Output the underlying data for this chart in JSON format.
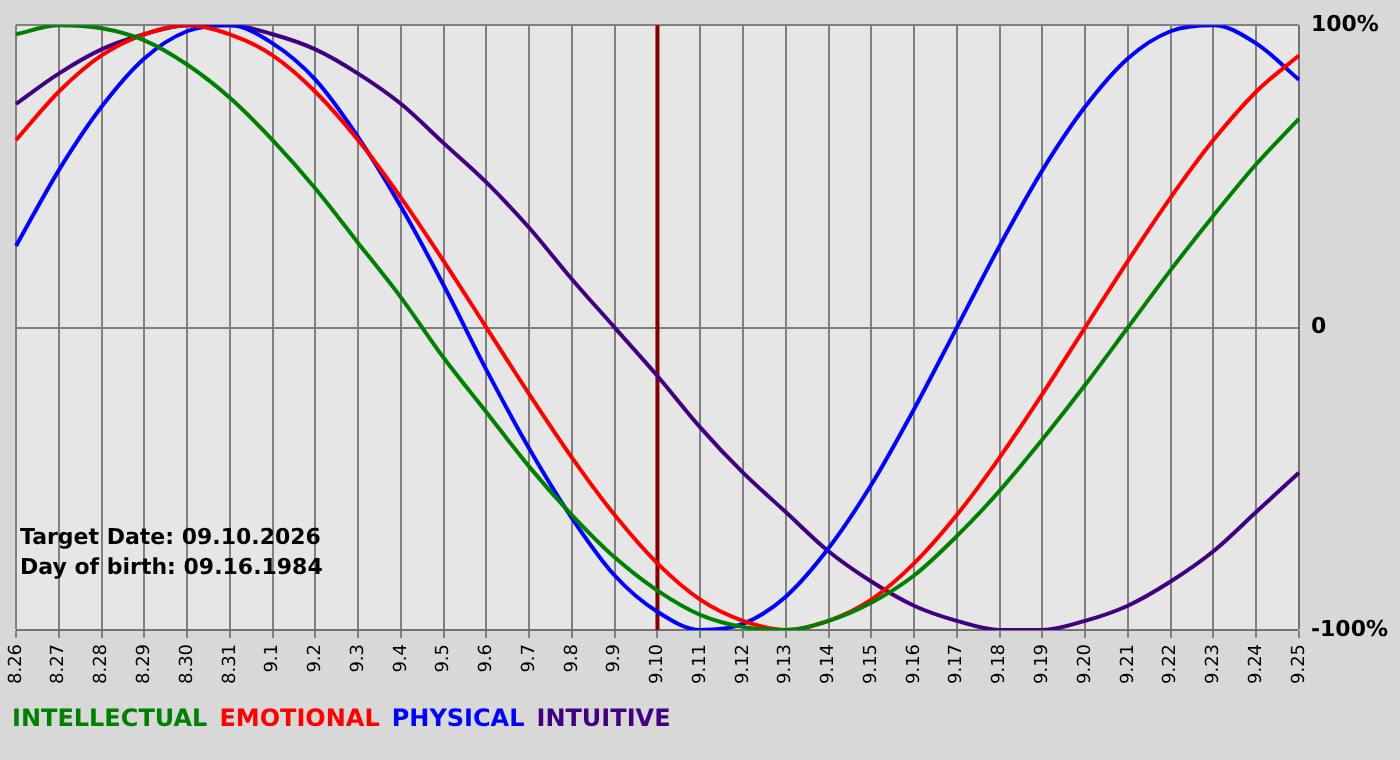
{
  "chart_data": {
    "type": "line",
    "categories": [
      "8.26",
      "8.27",
      "8.28",
      "8.29",
      "8.30",
      "8.31",
      "9.1",
      "9.2",
      "9.3",
      "9.4",
      "9.5",
      "9.6",
      "9.7",
      "9.8",
      "9.9",
      "9.10",
      "9.11",
      "9.12",
      "9.13",
      "9.14",
      "9.15",
      "9.16",
      "9.17",
      "9.18",
      "9.19",
      "9.20",
      "9.21",
      "9.22",
      "9.23",
      "9.24",
      "9.25"
    ],
    "series": [
      {
        "name": "INTELLECTUAL",
        "color": "#008000",
        "values": [
          97,
          100,
          99,
          95,
          87,
          76,
          62,
          46,
          28,
          10,
          -10,
          -28,
          -46,
          -62,
          -76,
          -87,
          -95,
          -99,
          -100,
          -97,
          -91,
          -82,
          -69,
          -54,
          -37,
          -19,
          0,
          19,
          37,
          54,
          69
        ]
      },
      {
        "name": "EMOTIONAL",
        "color": "#ff0000",
        "values": [
          62,
          78,
          90,
          97,
          100,
          97,
          90,
          78,
          62,
          43,
          22,
          0,
          -22,
          -43,
          -62,
          -78,
          -90,
          -97,
          -100,
          -97,
          -90,
          -78,
          -62,
          -43,
          -22,
          0,
          22,
          43,
          62,
          78,
          90
        ]
      },
      {
        "name": "PHYSICAL",
        "color": "#0000ff",
        "values": [
          27,
          52,
          73,
          89,
          98,
          100,
          94,
          82,
          63,
          40,
          14,
          -14,
          -40,
          -63,
          -82,
          -94,
          -100,
          -98,
          -89,
          -73,
          -52,
          -27,
          0,
          27,
          52,
          73,
          89,
          98,
          100,
          94,
          82
        ]
      },
      {
        "name": "INTUITIVE",
        "color": "#400080",
        "values": [
          74,
          84,
          92,
          97,
          100,
          100,
          97,
          92,
          84,
          74,
          61,
          48,
          33,
          16,
          0,
          -16,
          -33,
          -48,
          -61,
          -74,
          -84,
          -92,
          -97,
          -100,
          -100,
          -97,
          -92,
          -84,
          -74,
          -61,
          -48
        ]
      }
    ],
    "ylim": [
      -100,
      100
    ],
    "yticks": [
      {
        "value": -100,
        "label": "-100%"
      },
      0,
      {
        "value": 100,
        "label": "100%"
      }
    ],
    "grid": true,
    "legend": "bottom left",
    "marker": "none",
    "line_style": "solid",
    "ref_lines": [
      {
        "axis": "x",
        "value": "9.10",
        "color": "#800000"
      }
    ],
    "annotations": [
      "Target Date: 09.10.2026",
      "Day of birth: 09.16.1984"
    ]
  }
}
